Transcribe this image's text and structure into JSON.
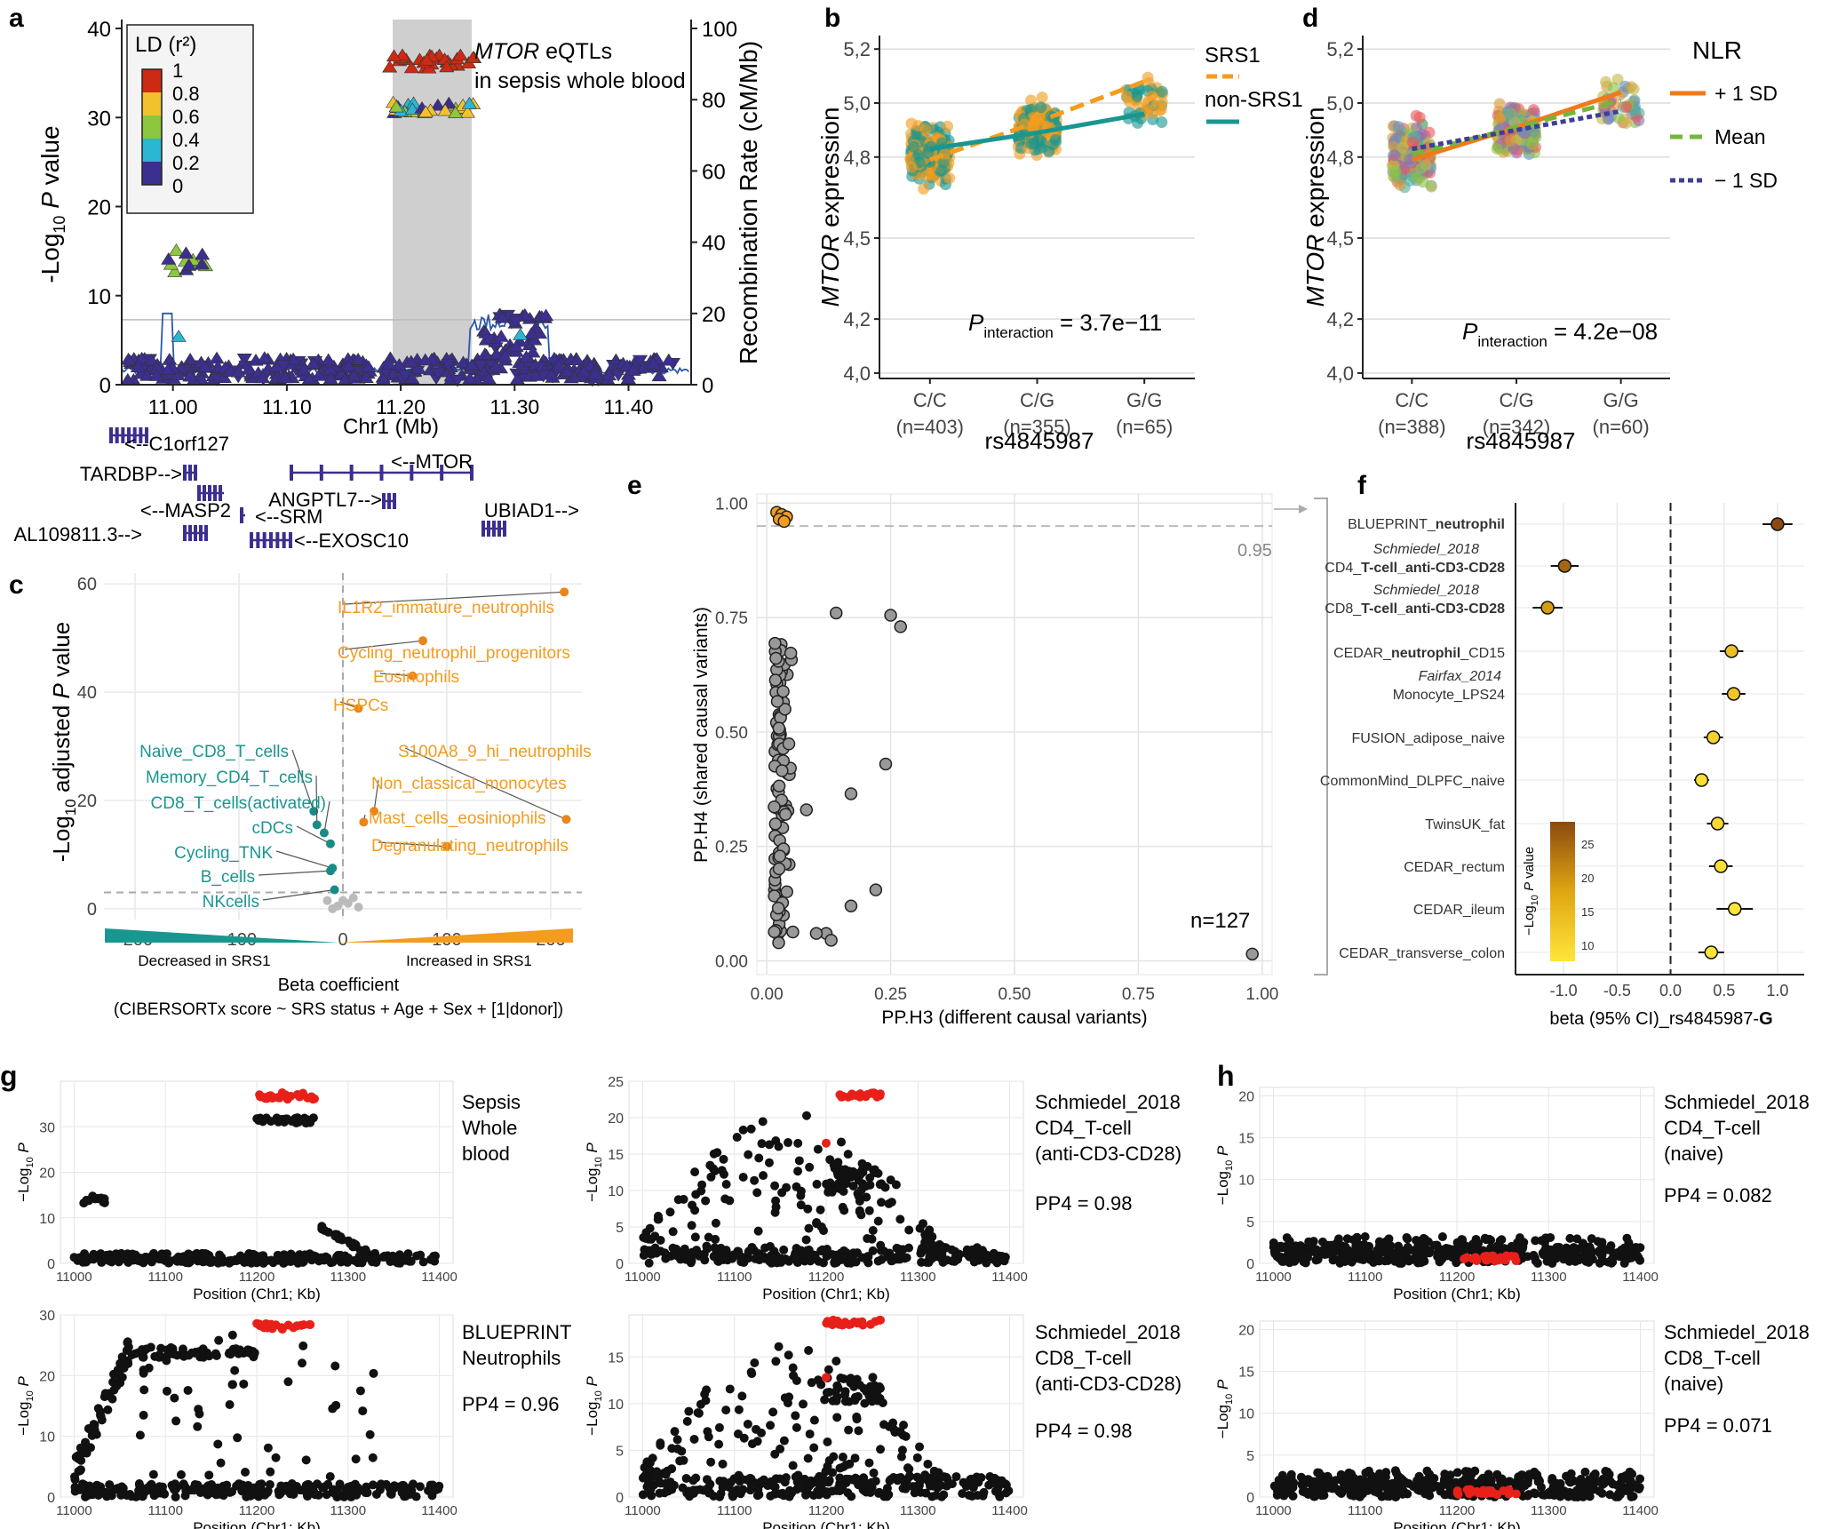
{
  "chart_data": [
    {
      "type": "scatter",
      "panel": "a",
      "title": "MTOR eQTLs in sepsis whole blood",
      "xlabel": "Chr1 (Mb)",
      "ylabel": "-Log10 P value",
      "ylabel_right": "Recombination Rate (cM/Mb)",
      "xlim": [
        10.955,
        11.455
      ],
      "ylim": [
        0,
        41
      ],
      "ylim_right": [
        0,
        102.5
      ],
      "xticks": [
        11.0,
        11.1,
        11.2,
        11.3,
        11.4
      ],
      "yticks": [
        0,
        10,
        20,
        30,
        40
      ],
      "yticks_right": [
        0,
        20,
        40,
        60,
        80,
        100
      ],
      "xtick_labels": [
        "11.00",
        "11.10",
        "11.20",
        "11.30",
        "11.40"
      ],
      "highlight_region": [
        11.19,
        11.265
      ],
      "legend": {
        "title": "LD (r²)",
        "labels": [
          "1",
          "0.8",
          "0.6",
          "0.4",
          "0.2",
          "0"
        ],
        "colors": [
          "#cc2a12",
          "#e06a1f",
          "#f2c12e",
          "#8dc63f",
          "#2bb6d4",
          "#3b2f8f"
        ]
      },
      "clusters": [
        {
          "x": [
            11.19,
            11.265
          ],
          "y": [
            35.5,
            37.0
          ],
          "n": 30,
          "color": "#cc2a12"
        },
        {
          "x": [
            11.19,
            11.265
          ],
          "y": [
            30.5,
            31.8
          ],
          "n": 28,
          "color": "mixed"
        },
        {
          "x": [
            10.995,
            11.03
          ],
          "y": [
            12.5,
            15.3
          ],
          "n": 14,
          "color": "mixed2"
        },
        {
          "x": [
            10.96,
            11.44
          ],
          "y": [
            0.5,
            3.0
          ],
          "n": 320,
          "color": "#3b2f8f"
        },
        {
          "x": [
            11.27,
            11.33
          ],
          "y": [
            3.0,
            8.0
          ],
          "n": 45,
          "color": "#3b2f8f"
        }
      ],
      "genes": [
        {
          "name": "<--C1orf127",
          "start": 10.96,
          "end": 10.99
        },
        {
          "name": "TARDBP-->",
          "start": 11.01,
          "end": 11.025
        },
        {
          "name": "<--MTOR",
          "start": 11.18,
          "end": 11.26
        },
        {
          "name": "ANGPTL7-->",
          "start": 11.185,
          "end": 11.19
        },
        {
          "name": "<--MASP2",
          "start": 11.025,
          "end": 11.045
        },
        {
          "name": "<--SRM",
          "start": 11.07,
          "end": 11.073
        },
        {
          "name": "AL109811.3-->",
          "start": 11.005,
          "end": 11.02
        },
        {
          "name": "<--EXOSC10",
          "start": 11.08,
          "end": 11.125
        },
        {
          "name": "UBIAD1-->",
          "start": 11.27,
          "end": 11.29
        }
      ]
    },
    {
      "type": "scatter",
      "panel": "b",
      "xlabel": "rs4845987",
      "ylabel": "MTOR expression",
      "categories": [
        "C/C",
        "C/G",
        "G/G"
      ],
      "counts": [
        "(n=403)",
        "(n=355)",
        "(n=65)"
      ],
      "yticks": [
        "4,0",
        "4,2",
        "4,5",
        "4,8",
        "5,0",
        "5,2"
      ],
      "ylim": [
        3.98,
        5.25
      ],
      "annotation": "P interaction = 3.7e−11",
      "series": [
        {
          "name": "SRS1",
          "color": "#f39c1f",
          "line": [
            4.79,
            4.93,
            5.08
          ]
        },
        {
          "name": "non-SRS1",
          "color": "#1a9690",
          "line": [
            4.83,
            4.89,
            4.96
          ]
        }
      ]
    },
    {
      "type": "scatter",
      "panel": "d",
      "xlabel": "rs4845987",
      "ylabel": "MTOR expression",
      "categories": [
        "C/C",
        "C/G",
        "G/G"
      ],
      "counts": [
        "(n=388)",
        "(n=342)",
        "(n=60)"
      ],
      "yticks": [
        "4,0",
        "4,2",
        "4,5",
        "4,8",
        "5,0",
        "5,2"
      ],
      "ylim": [
        3.98,
        5.25
      ],
      "annotation": "P interaction = 4.2e−08",
      "legend_title": "NLR",
      "series": [
        {
          "name": "+ 1 SD",
          "color": "#ef7a1a",
          "line": [
            4.79,
            4.91,
            5.04
          ]
        },
        {
          "name": "Mean",
          "color": "#74b63d",
          "line": [
            4.81,
            4.91,
            5.01
          ]
        },
        {
          "name": "− 1 SD",
          "color": "#3e3f96",
          "line": [
            4.83,
            4.9,
            4.97
          ]
        }
      ]
    },
    {
      "type": "scatter",
      "panel": "c",
      "xlabel": "Beta coefficient",
      "xlabel2": "(CIBERSORTx score  ~ SRS status + Age + Sex + [1|donor])",
      "ylabel": "-Log10 adjusted P value",
      "xlim": [
        -230,
        230
      ],
      "ylim": [
        -2,
        62
      ],
      "xticks": [
        -200,
        -100,
        0,
        100,
        200
      ],
      "yticks": [
        0,
        20,
        40,
        60
      ],
      "threshold": 3,
      "gradient_labels": [
        "Decreased in SRS1",
        "Increased in SRS1"
      ],
      "points": [
        {
          "label": "IL1R2_immature_neutrophils",
          "x": 213,
          "y": 58.5,
          "group": "up"
        },
        {
          "label": "Cycling_neutrophil_progenitors",
          "x": 77,
          "y": 49.5,
          "group": "up"
        },
        {
          "label": "Eosinophils",
          "x": 67,
          "y": 43,
          "group": "up"
        },
        {
          "label": "HSPCs",
          "x": 15,
          "y": 37,
          "group": "up"
        },
        {
          "label": "S100A8_9_hi_neutrophils",
          "x": 215,
          "y": 16.5,
          "group": "up"
        },
        {
          "label": "Non_classical_monocytes",
          "x": 30,
          "y": 18,
          "group": "up"
        },
        {
          "label": "Mast_cells_eosiniophils",
          "x": 20,
          "y": 16,
          "group": "up"
        },
        {
          "label": "Degranulating_neutrophils",
          "x": 100,
          "y": 11.5,
          "group": "up"
        },
        {
          "label": "Naive_CD8_T_cells",
          "x": -28,
          "y": 18,
          "group": "down"
        },
        {
          "label": "Memory_CD4_T_cells",
          "x": -25,
          "y": 15.5,
          "group": "down"
        },
        {
          "label": "CD8_T_cells(activated)",
          "x": -18,
          "y": 14,
          "group": "down"
        },
        {
          "label": "cDCs",
          "x": -12,
          "y": 12,
          "group": "down"
        },
        {
          "label": "Cycling_TNK",
          "x": -10,
          "y": 7.5,
          "group": "down"
        },
        {
          "label": "B_cells",
          "x": -12,
          "y": 7,
          "group": "down"
        },
        {
          "label": "NKcells",
          "x": -8,
          "y": 3.5,
          "group": "down"
        }
      ]
    },
    {
      "type": "scatter",
      "panel": "e",
      "xlabel": "PP.H3 (different causal variants)",
      "ylabel": "PP.H4 (shared causal variants)",
      "xlim": [
        -0.02,
        1.02
      ],
      "ylim": [
        -0.03,
        1.02
      ],
      "xticks": [
        "0.00",
        "0.25",
        "0.50",
        "0.75",
        "1.00"
      ],
      "yticks": [
        "0.00",
        "0.25",
        "0.50",
        "0.75",
        "1.00"
      ],
      "threshold": 0.95,
      "threshold_label": "0.95",
      "annotation": "n=127",
      "points_highlight": [
        [
          0.02,
          0.98
        ],
        [
          0.03,
          0.975
        ],
        [
          0.04,
          0.97
        ],
        [
          0.025,
          0.965
        ],
        [
          0.035,
          0.96
        ]
      ],
      "points_other": [
        [
          0.98,
          0.015
        ],
        [
          0.14,
          0.76
        ],
        [
          0.25,
          0.755
        ],
        [
          0.27,
          0.73
        ],
        [
          0.24,
          0.43
        ],
        [
          0.17,
          0.365
        ],
        [
          0.08,
          0.33
        ],
        [
          0.22,
          0.155
        ],
        [
          0.17,
          0.12
        ],
        [
          0.12,
          0.06
        ],
        [
          0.13,
          0.045
        ],
        [
          0.1,
          0.06
        ]
      ]
    },
    {
      "type": "scatter",
      "panel": "f",
      "xlabel": "beta (95% CI)_rs4845987-G",
      "xlim": [
        -1.45,
        1.25
      ],
      "xticks": [
        "-1.0",
        "-0.5",
        "0.0",
        "0.5",
        "1.0"
      ],
      "xtick_values": [
        -1,
        -0.5,
        0,
        0.5,
        1
      ],
      "legend_title": "−Log10 P value",
      "legend_ticks": [
        "25",
        "20",
        "15",
        "10"
      ],
      "rows": [
        {
          "label": "BLUEPRINT_neutrophil",
          "beta": 1.0,
          "lo": 0.86,
          "hi": 1.14,
          "p": 27
        },
        {
          "label": "Schmiedel_2018 CD4_T-cell_anti-CD3-CD28",
          "beta": -0.99,
          "lo": -1.12,
          "hi": -0.86,
          "p": 24
        },
        {
          "label": "Schmiedel_2018 CD8_T-cell_anti-CD3-CD28",
          "beta": -1.15,
          "lo": -1.29,
          "hi": -1.01,
          "p": 18
        },
        {
          "label": "CEDAR_neutrophil_CD15",
          "beta": 0.57,
          "lo": 0.46,
          "hi": 0.68,
          "p": 13
        },
        {
          "label": "Fairfax_2014 Monocyte_LPS24",
          "beta": 0.59,
          "lo": 0.48,
          "hi": 0.7,
          "p": 12
        },
        {
          "label": "FUSION_adipose_naive",
          "beta": 0.4,
          "lo": 0.31,
          "hi": 0.49,
          "p": 10
        },
        {
          "label": "CommonMind_DLPFC_naive",
          "beta": 0.29,
          "lo": 0.22,
          "hi": 0.36,
          "p": 8
        },
        {
          "label": "TwinsUK_fat",
          "beta": 0.44,
          "lo": 0.34,
          "hi": 0.54,
          "p": 9
        },
        {
          "label": "CEDAR_rectum",
          "beta": 0.47,
          "lo": 0.36,
          "hi": 0.58,
          "p": 8
        },
        {
          "label": "CEDAR_ileum",
          "beta": 0.6,
          "lo": 0.43,
          "hi": 0.77,
          "p": 7
        },
        {
          "label": "CEDAR_transverse_colon",
          "beta": 0.38,
          "lo": 0.26,
          "hi": 0.5,
          "p": 7
        }
      ]
    },
    {
      "type": "scatter",
      "panel": "g",
      "xlabel": "Position (Chr1; Kb)",
      "ylabel": "−Log10 P",
      "xticks": [
        "11000",
        "11100",
        "11200",
        "11300",
        "11400"
      ],
      "subplots": [
        {
          "label": "Sepsis Whole blood",
          "pp4": "",
          "ymax": 40,
          "yticks": [
            0,
            10,
            20,
            30
          ]
        },
        {
          "label": "Schmiedel_2018 CD4_T-cell (anti-CD3-CD28)",
          "pp4": "PP4 = 0.98",
          "ymax": 25,
          "yticks": [
            0,
            5,
            10,
            15,
            20,
            25
          ]
        },
        {
          "label": "BLUEPRINT Neutrophils",
          "pp4": "PP4 = 0.96",
          "ymax": 30,
          "yticks": [
            0,
            10,
            20,
            30
          ]
        },
        {
          "label": "Schmiedel_2018 CD8_T-cell (anti-CD3-CD28)",
          "pp4": "PP4 = 0.98",
          "ymax": 19.5,
          "yticks": [
            0,
            5,
            10,
            15
          ]
        }
      ]
    },
    {
      "type": "scatter",
      "panel": "h",
      "xlabel": "Position (Chr1; Kb)",
      "ylabel": "−Log10 P",
      "xticks": [
        "11000",
        "11100",
        "11200",
        "11300",
        "11400"
      ],
      "subplots": [
        {
          "label": "Schmiedel_2018 CD4_T-cell (naive)",
          "pp4": "PP4 = 0.082",
          "ymax": 21,
          "yticks": [
            0,
            5,
            10,
            15,
            20
          ]
        },
        {
          "label": "Schmiedel_2018 CD8_T-cell (naive)",
          "pp4": "PP4 = 0.071",
          "ymax": 21,
          "yticks": [
            0,
            5,
            10,
            15,
            20
          ]
        }
      ]
    }
  ],
  "panel_letters": [
    "a",
    "b",
    "d",
    "c",
    "e",
    "f",
    "g",
    "h"
  ],
  "texts": {
    "a_title_gene": "MTOR",
    "a_title_rest": " eQTLs",
    "a_title_line2": "in sepsis whole blood",
    "b_ylabel_gene": "MTOR",
    "b_ylabel_rest": " expression",
    "d_ylabel_gene": "MTOR",
    "d_ylabel_rest": " expression",
    "f_xlabel_main": "beta (95% CI)_rs4845987-",
    "f_xlabel_bold": "G",
    "f_group1": "Schmiedel_2018",
    "f_group2": "Fairfax_2014",
    "g_sub0_l1": "Sepsis",
    "g_sub0_l2": "Whole",
    "g_sub0_l3": "blood",
    "g_sub1_l1": "Schmiedel_2018",
    "g_sub1_l2": "CD4_T-cell",
    "g_sub1_l3": "(anti-CD3-CD28)",
    "g_sub2_l1": "BLUEPRINT",
    "g_sub2_l2": "Neutrophils",
    "g_sub3_l1": "Schmiedel_2018",
    "g_sub3_l2": "CD8_T-cell",
    "g_sub3_l3": "(anti-CD3-CD28)",
    "h_sub0_l1": "Schmiedel_2018",
    "h_sub0_l2": "CD4_T-cell",
    "h_sub0_l3": "(naive)",
    "h_sub1_l1": "Schmiedel_2018",
    "h_sub1_l2": "CD8_T-cell",
    "h_sub1_l3": "(naive)"
  }
}
